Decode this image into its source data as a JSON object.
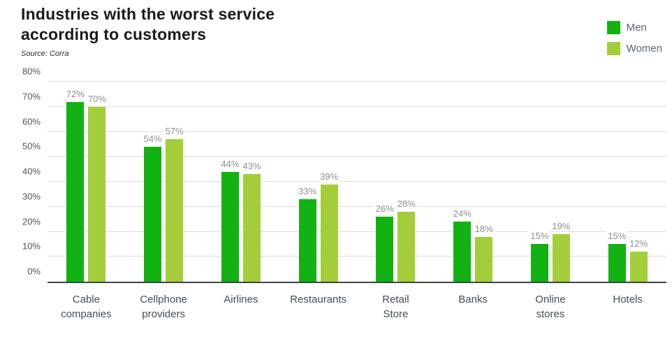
{
  "header": {
    "title": "Industries with the worst service\naccording to customers",
    "source": "Source: Corra"
  },
  "legend": {
    "position": "top-right",
    "items": [
      {
        "label": "Men",
        "color": "#12b212"
      },
      {
        "label": "Women",
        "color": "#a4ce39"
      }
    ]
  },
  "chart_data": {
    "type": "bar",
    "title": "Industries with the worst service according to customers",
    "source": "Source: Corra",
    "categories": [
      "Cable\ncompanies",
      "Cellphone\nproviders",
      "Airlines",
      "Restaurants",
      "Retail\nStore",
      "Banks",
      "Online\nstores",
      "Hotels"
    ],
    "series": [
      {
        "name": "Men",
        "color": "#12b212",
        "values": [
          72,
          54,
          44,
          33,
          26,
          24,
          15,
          15
        ]
      },
      {
        "name": "Women",
        "color": "#a4ce39",
        "values": [
          70,
          57,
          43,
          39,
          28,
          18,
          19,
          12
        ]
      }
    ],
    "value_label_suffix": "%",
    "yticks": [
      "0%",
      "10%",
      "20%",
      "30%",
      "40%",
      "50%",
      "60%",
      "70%",
      "80%"
    ],
    "ylim": [
      0,
      80
    ],
    "grid": true,
    "baseline_color": "#3d434b",
    "grid_color": "#dcdcdc",
    "value_label_color": "#8e8e8e",
    "legend_position": "top-right"
  }
}
